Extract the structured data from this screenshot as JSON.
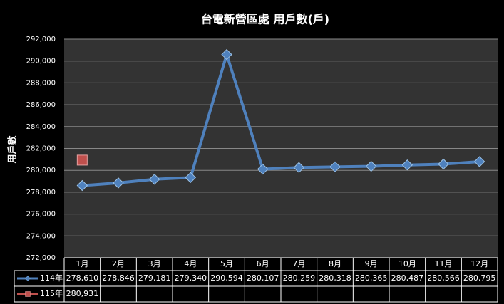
{
  "chart_data": {
    "type": "line",
    "title": "台電新營區處 用戶數(戶)",
    "y_label": "用戶數",
    "categories": [
      "1月",
      "2月",
      "3月",
      "4月",
      "5月",
      "6月",
      "7月",
      "8月",
      "9月",
      "10月",
      "11月",
      "12月"
    ],
    "series": [
      {
        "name": "114年",
        "color": "#4f81bd",
        "marker": "diamond",
        "values": [
          278610,
          278846,
          279181,
          279340,
          290594,
          280107,
          280259,
          280318,
          280365,
          280487,
          280566,
          280795
        ],
        "value_labels": [
          "278,610",
          "278,846",
          "279,181",
          "279,340",
          "290,594",
          "280,107",
          "280,259",
          "280,318",
          "280,365",
          "280,487",
          "280,566",
          "280,795"
        ]
      },
      {
        "name": "115年",
        "color": "#c0504d",
        "marker": "square",
        "values": [
          280931,
          null,
          null,
          null,
          null,
          null,
          null,
          null,
          null,
          null,
          null,
          null
        ],
        "value_labels": [
          "280,931",
          null,
          null,
          null,
          null,
          null,
          null,
          null,
          null,
          null,
          null,
          null
        ]
      }
    ],
    "ylim": [
      272000,
      292000
    ],
    "yticks": [
      {
        "value": 272000,
        "label": "272,000"
      },
      {
        "value": 274000,
        "label": "274,000"
      },
      {
        "value": 276000,
        "label": "276,000"
      },
      {
        "value": 278000,
        "label": "278,000"
      },
      {
        "value": 280000,
        "label": "280,000"
      },
      {
        "value": 282000,
        "label": "282,000"
      },
      {
        "value": 284000,
        "label": "284,000"
      },
      {
        "value": 286000,
        "label": "286,000"
      },
      {
        "value": 288000,
        "label": "288,000"
      },
      {
        "value": 290000,
        "label": "290,000"
      },
      {
        "value": 292000,
        "label": "292,000"
      }
    ],
    "grid": true
  }
}
